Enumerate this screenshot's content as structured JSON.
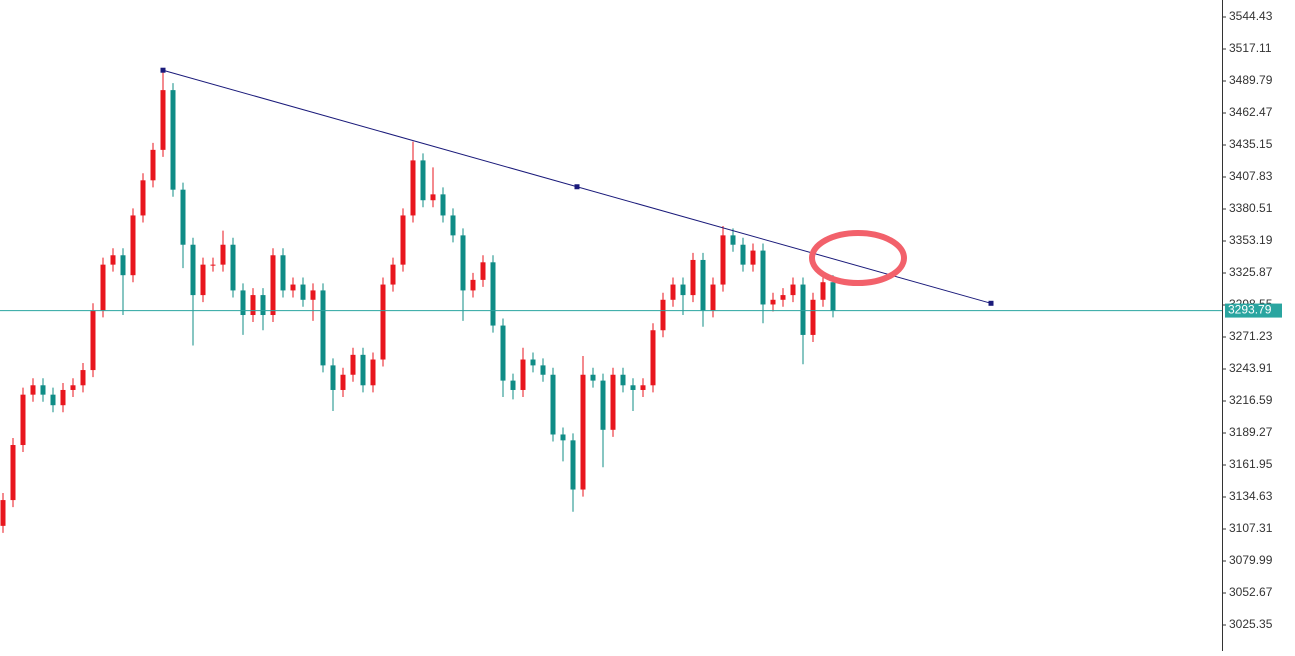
{
  "chart_data": {
    "type": "candlestick",
    "open": [
      3110,
      3132,
      3179,
      3222,
      3230,
      3222,
      3213,
      3226,
      3230,
      3243,
      3294,
      3333,
      3341,
      3324,
      3375,
      3405,
      3431,
      3482,
      3397,
      3350,
      3307,
      3333,
      3333,
      3350,
      3311,
      3290,
      3307,
      3290,
      3341,
      3311,
      3316,
      3303,
      3311,
      3247,
      3226,
      3239,
      3256,
      3230,
      3252,
      3316,
      3333,
      3375,
      3422,
      3388,
      3393,
      3375,
      3358,
      3311,
      3320,
      3335,
      3281,
      3234,
      3226,
      3252,
      3247,
      3239,
      3188,
      3183,
      3141,
      3239,
      3234,
      3192,
      3239,
      3230,
      3226,
      3230,
      3277,
      3303,
      3316,
      3307,
      3337,
      3294,
      3316,
      3358,
      3350,
      3333,
      3345,
      3299,
      3303,
      3307,
      3316,
      3273,
      3303,
      3318
    ],
    "high": [
      3138,
      3185,
      3228,
      3236,
      3236,
      3228,
      3232,
      3236,
      3249,
      3300,
      3339,
      3347,
      3347,
      3381,
      3411,
      3437,
      3499,
      3488,
      3403,
      3356,
      3339,
      3339,
      3362,
      3356,
      3317,
      3313,
      3313,
      3347,
      3347,
      3322,
      3322,
      3317,
      3317,
      3253,
      3245,
      3262,
      3262,
      3258,
      3322,
      3339,
      3381,
      3438,
      3428,
      3416,
      3399,
      3381,
      3364,
      3326,
      3341,
      3341,
      3287,
      3240,
      3262,
      3258,
      3253,
      3245,
      3194,
      3189,
      3255,
      3245,
      3240,
      3245,
      3245,
      3236,
      3236,
      3283,
      3309,
      3322,
      3322,
      3343,
      3343,
      3322,
      3366,
      3364,
      3356,
      3351,
      3351,
      3309,
      3313,
      3322,
      3322,
      3309,
      3324,
      3324
    ],
    "low": [
      3104,
      3126,
      3173,
      3216,
      3216,
      3207,
      3207,
      3220,
      3224,
      3237,
      3288,
      3327,
      3290,
      3318,
      3369,
      3399,
      3425,
      3391,
      3330,
      3264,
      3301,
      3327,
      3327,
      3305,
      3273,
      3284,
      3277,
      3284,
      3305,
      3305,
      3297,
      3285,
      3241,
      3208,
      3220,
      3233,
      3224,
      3224,
      3246,
      3310,
      3327,
      3369,
      3382,
      3382,
      3369,
      3352,
      3285,
      3305,
      3314,
      3275,
      3220,
      3218,
      3220,
      3241,
      3233,
      3182,
      3165,
      3122,
      3135,
      3228,
      3160,
      3186,
      3224,
      3208,
      3220,
      3224,
      3271,
      3297,
      3290,
      3301,
      3280,
      3288,
      3310,
      3344,
      3327,
      3327,
      3283,
      3293,
      3297,
      3301,
      3248,
      3267,
      3297,
      3288
    ],
    "close": [
      3132,
      3179,
      3222,
      3230,
      3222,
      3213,
      3226,
      3230,
      3243,
      3294,
      3333,
      3341,
      3324,
      3375,
      3405,
      3431,
      3482,
      3397,
      3350,
      3307,
      3333,
      3333,
      3350,
      3311,
      3290,
      3307,
      3290,
      3341,
      3311,
      3316,
      3303,
      3311,
      3247,
      3226,
      3239,
      3256,
      3230,
      3252,
      3316,
      3333,
      3375,
      3422,
      3388,
      3393,
      3375,
      3358,
      3311,
      3320,
      3335,
      3281,
      3234,
      3226,
      3252,
      3247,
      3239,
      3188,
      3183,
      3141,
      3239,
      3234,
      3192,
      3239,
      3230,
      3226,
      3230,
      3277,
      3303,
      3316,
      3307,
      3337,
      3294,
      3316,
      3358,
      3350,
      3333,
      3345,
      3299,
      3303,
      3307,
      3316,
      3273,
      3303,
      3318,
      3293.79
    ],
    "up_color": "#e8161e",
    "down_color": "#0f8c86",
    "ylim": [
      3003.15,
      3558.94
    ],
    "yticks": [
      3544.43,
      3517.11,
      3489.79,
      3462.47,
      3435.15,
      3407.83,
      3380.51,
      3353.19,
      3325.87,
      3298.55,
      3271.23,
      3243.91,
      3216.59,
      3189.27,
      3161.95,
      3134.63,
      3107.31,
      3079.99,
      3052.67,
      3025.35
    ],
    "current_price": 3293.79,
    "current_price_color": "#2aa5a0",
    "trendline": {
      "x": [
        16,
        98.8
      ],
      "y": [
        3499,
        3300
      ],
      "color": "#1a1a7a"
    }
  }
}
